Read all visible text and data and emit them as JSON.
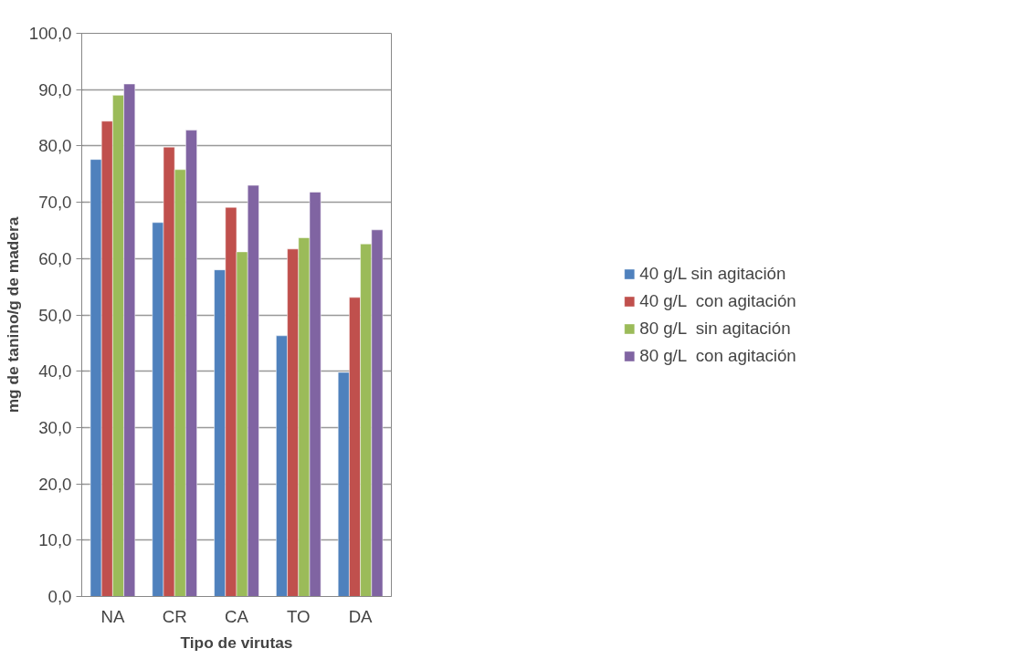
{
  "chart_data": {
    "type": "bar",
    "xlabel": "Tipo de virutas",
    "ylabel": "mg de tanino/g de madera",
    "categories": [
      "NA",
      "CR",
      "CA",
      "TO",
      "DA"
    ],
    "series": [
      {
        "name": "40 g/L sin agitación",
        "color": "#4f81bd",
        "values": [
          77.6,
          66.4,
          58.0,
          46.3,
          39.8
        ]
      },
      {
        "name": "40 g/L  con agitación",
        "color": "#c0504d",
        "values": [
          84.4,
          79.8,
          69.1,
          61.7,
          53.1
        ]
      },
      {
        "name": "80 g/L  sin agitación",
        "color": "#9bbb59",
        "values": [
          89.0,
          75.8,
          61.2,
          63.7,
          62.6
        ]
      },
      {
        "name": "80 g/L  con agitación",
        "color": "#8064a2",
        "values": [
          91.0,
          82.8,
          73.0,
          71.8,
          65.1
        ]
      }
    ],
    "ylim": [
      0,
      100
    ],
    "yticks": [
      {
        "value": 0,
        "label": "0,0"
      },
      {
        "value": 10,
        "label": "10,0"
      },
      {
        "value": 20,
        "label": "20,0"
      },
      {
        "value": 30,
        "label": "30,0"
      },
      {
        "value": 40,
        "label": "40,0"
      },
      {
        "value": 50,
        "label": "50,0"
      },
      {
        "value": 60,
        "label": "60,0"
      },
      {
        "value": 70,
        "label": "70,0"
      },
      {
        "value": 80,
        "label": "80,0"
      },
      {
        "value": 90,
        "label": "90,0"
      },
      {
        "value": 100,
        "label": "100,0"
      }
    ],
    "grid": "y",
    "legend": "right"
  }
}
